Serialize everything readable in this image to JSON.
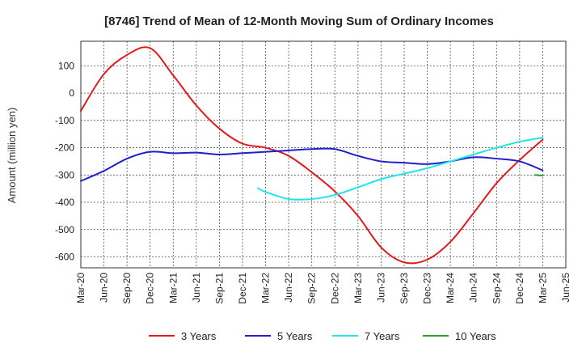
{
  "chart_data": {
    "type": "line",
    "title": "[8746]  Trend of Mean of 12-Month Moving Sum of Ordinary Incomes",
    "xlabel": "",
    "ylabel": "Amount (million yen)",
    "ylim": [
      -640,
      190
    ],
    "yticks": [
      100,
      0,
      -100,
      -200,
      -300,
      -400,
      -500,
      -600
    ],
    "x_tick_labels": [
      "Mar-20",
      "Jun-20",
      "Sep-20",
      "Dec-20",
      "Mar-21",
      "Jun-21",
      "Sep-21",
      "Dec-21",
      "Mar-22",
      "Jun-22",
      "Sep-22",
      "Dec-22",
      "Mar-23",
      "Jun-23",
      "Sep-23",
      "Dec-23",
      "Mar-24",
      "Jun-24",
      "Sep-24",
      "Dec-24",
      "Mar-25",
      "Jun-25"
    ],
    "grid": true,
    "legend_position": "bottom",
    "series": [
      {
        "name": "3 Years",
        "color": "#e31a1c",
        "values": [
          [
            0,
            -65
          ],
          [
            1,
            70
          ],
          [
            2,
            140
          ],
          [
            3,
            165
          ],
          [
            4,
            65
          ],
          [
            5,
            -45
          ],
          [
            6,
            -130
          ],
          [
            7,
            -185
          ],
          [
            8,
            -200
          ],
          [
            9,
            -230
          ],
          [
            10,
            -290
          ],
          [
            11,
            -360
          ],
          [
            12,
            -450
          ],
          [
            13,
            -565
          ],
          [
            14,
            -620
          ],
          [
            15,
            -610
          ],
          [
            16,
            -545
          ],
          [
            17,
            -440
          ],
          [
            18,
            -330
          ],
          [
            19,
            -245
          ],
          [
            20,
            -170
          ]
        ]
      },
      {
        "name": "5 Years",
        "color": "#1f1fcc",
        "values": [
          [
            0,
            -322
          ],
          [
            1,
            -285
          ],
          [
            2,
            -240
          ],
          [
            3,
            -215
          ],
          [
            4,
            -220
          ],
          [
            5,
            -218
          ],
          [
            6,
            -225
          ],
          [
            7,
            -220
          ],
          [
            8,
            -215
          ],
          [
            9,
            -210
          ],
          [
            10,
            -205
          ],
          [
            11,
            -205
          ],
          [
            12,
            -230
          ],
          [
            13,
            -250
          ],
          [
            14,
            -255
          ],
          [
            15,
            -260
          ],
          [
            16,
            -250
          ],
          [
            17,
            -235
          ],
          [
            18,
            -240
          ],
          [
            19,
            -250
          ],
          [
            20,
            -283
          ]
        ]
      },
      {
        "name": "7 Years",
        "color": "#22e6e6",
        "values": [
          [
            7.67,
            -348
          ],
          [
            8,
            -362
          ],
          [
            9,
            -388
          ],
          [
            10,
            -388
          ],
          [
            11,
            -373
          ],
          [
            12,
            -345
          ],
          [
            13,
            -315
          ],
          [
            14,
            -295
          ],
          [
            15,
            -275
          ],
          [
            16,
            -250
          ],
          [
            17,
            -225
          ],
          [
            18,
            -200
          ],
          [
            19,
            -178
          ],
          [
            20,
            -163
          ]
        ]
      },
      {
        "name": "10 Years",
        "color": "#2ca02c",
        "values": [
          [
            19.67,
            -300
          ],
          [
            20,
            -302
          ]
        ]
      }
    ]
  }
}
